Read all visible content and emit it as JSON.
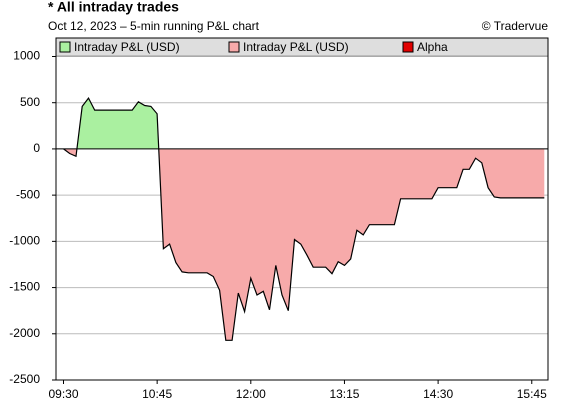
{
  "chart_data": {
    "type": "area",
    "title": "* All intraday trades",
    "subtitle": "Oct 12, 2023 – 5-min running P&L chart",
    "credit": "© Tradervue",
    "legend": [
      {
        "name": "Intraday P&L (USD)",
        "color": "#aaf0a0"
      },
      {
        "name": "Intraday P&L (USD)",
        "color": "#f7aaaa"
      },
      {
        "name": "Alpha",
        "color": "#e00000"
      }
    ],
    "line_color": "#000000",
    "x": [
      570,
      575,
      580,
      585,
      590,
      595,
      600,
      605,
      610,
      615,
      620,
      625,
      630,
      635,
      640,
      645,
      650,
      655,
      660,
      665,
      670,
      675,
      680,
      685,
      690,
      695,
      700,
      705,
      710,
      715,
      720,
      725,
      730,
      735,
      740,
      745,
      750,
      755,
      760,
      765,
      770,
      775,
      780,
      785,
      790,
      795,
      800,
      805,
      810,
      815,
      820,
      825,
      830,
      835,
      840,
      845,
      850,
      855,
      860,
      865,
      870,
      875,
      880,
      885,
      890,
      895,
      900,
      905,
      910,
      915,
      920,
      925,
      930,
      935,
      940,
      945,
      950,
      955
    ],
    "values": [
      0,
      -50,
      -80,
      460,
      550,
      420,
      420,
      420,
      420,
      420,
      420,
      420,
      510,
      470,
      460,
      380,
      -1080,
      -1030,
      -1230,
      -1330,
      -1340,
      -1340,
      -1340,
      -1340,
      -1380,
      -1530,
      -2070,
      -2070,
      -1560,
      -1760,
      -1400,
      -1580,
      -1540,
      -1740,
      -1260,
      -1580,
      -1750,
      -980,
      -1030,
      -1150,
      -1280,
      -1280,
      -1280,
      -1350,
      -1220,
      -1260,
      -1190,
      -880,
      -930,
      -820,
      -820,
      -820,
      -820,
      -820,
      -540,
      -540,
      -540,
      -540,
      -540,
      -540,
      -420,
      -420,
      -420,
      -420,
      -220,
      -220,
      -100,
      -150,
      -420,
      -520,
      -530,
      -530,
      -530,
      -530,
      -530,
      -530,
      -530,
      -530
    ],
    "xlim": [
      564,
      958
    ],
    "xticks": [
      {
        "value": 570,
        "label": "09:30"
      },
      {
        "value": 645,
        "label": "10:45"
      },
      {
        "value": 720,
        "label": "12:00"
      },
      {
        "value": 795,
        "label": "13:15"
      },
      {
        "value": 870,
        "label": "14:30"
      },
      {
        "value": 945,
        "label": "15:45"
      }
    ],
    "ylim": [
      -2500,
      1200
    ],
    "yticks": [
      -2500,
      -2000,
      -1500,
      -1000,
      -500,
      0,
      500,
      1000
    ],
    "grid": true
  }
}
